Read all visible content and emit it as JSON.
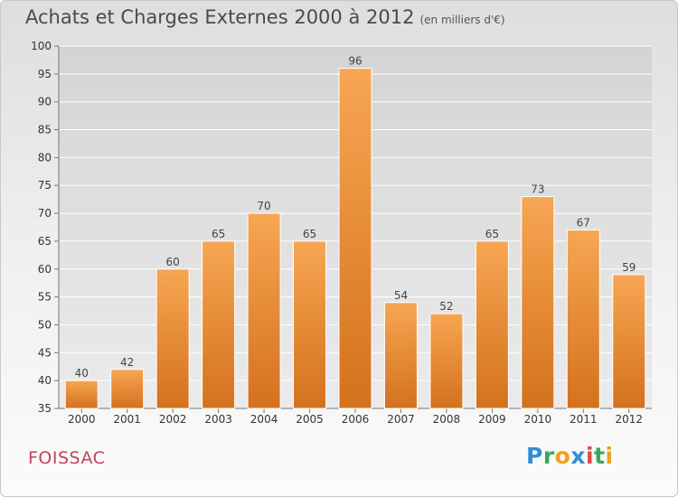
{
  "header": {
    "title": "Achats et Charges Externes 2000 à 2012",
    "unit": "(en milliers d'€)"
  },
  "footer": {
    "commune": "FOISSAC",
    "logo_letters": [
      {
        "char": "P",
        "color": "#2f8fd6"
      },
      {
        "char": "r",
        "color": "#3aa85a"
      },
      {
        "char": "o",
        "color": "#f0a020"
      },
      {
        "char": "x",
        "color": "#2f8fd6"
      },
      {
        "char": "i",
        "color": "#e04848"
      },
      {
        "char": "t",
        "color": "#3aa85a"
      },
      {
        "char": "i",
        "color": "#f0a020"
      }
    ]
  },
  "chart_data": {
    "type": "bar",
    "categories": [
      "2000",
      "2001",
      "2002",
      "2003",
      "2004",
      "2005",
      "2006",
      "2007",
      "2008",
      "2009",
      "2010",
      "2011",
      "2012"
    ],
    "values": [
      40,
      42,
      60,
      65,
      70,
      65,
      96,
      54,
      52,
      65,
      73,
      67,
      59
    ],
    "ylim": [
      35,
      100
    ],
    "yticks": [
      35,
      40,
      45,
      50,
      55,
      60,
      65,
      70,
      75,
      80,
      85,
      90,
      95,
      100
    ],
    "grid": true,
    "bar_color_top": "#f7a652",
    "bar_color_bottom": "#d4711e",
    "grid_color": "#ffffff"
  }
}
